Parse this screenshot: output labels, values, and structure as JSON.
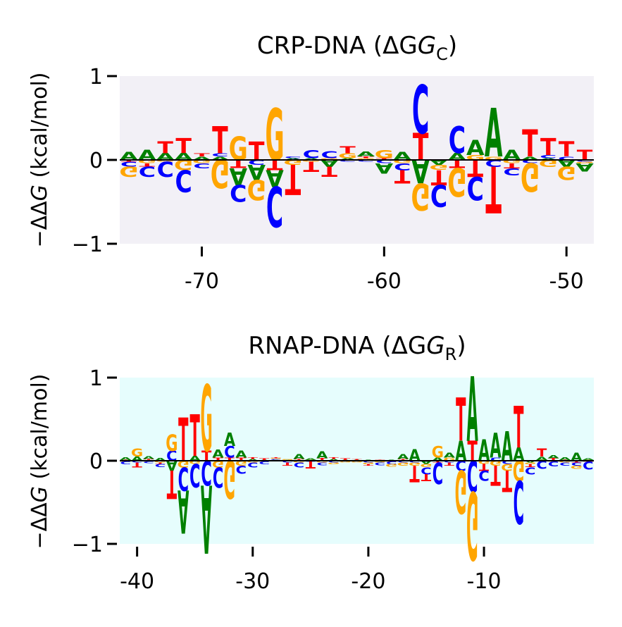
{
  "chart_data": [
    {
      "type": "sequence-logo",
      "title_main": "CRP-DNA (ΔG",
      "title_sub": "C",
      "title_close": ")",
      "ylabel_prefix": "−ΔΔ",
      "ylabel_italic": "G",
      "ylabel_suffix": " (kcal/mol)",
      "ylim": [
        -1,
        1
      ],
      "yticks": [
        {
          "value": 1,
          "label": "1"
        },
        {
          "value": 0,
          "label": "0"
        },
        {
          "value": -1,
          "label": "−1"
        }
      ],
      "xlim": [
        -74.5,
        -48.5
      ],
      "xticks": [
        {
          "value": -70,
          "label": "-70"
        },
        {
          "value": -60,
          "label": "-60"
        },
        {
          "value": -50,
          "label": "-50"
        }
      ],
      "background": "#f2f0f6",
      "positions": [
        -74,
        -73,
        -72,
        -71,
        -70,
        -69,
        -68,
        -67,
        -66,
        -65,
        -64,
        -63,
        -62,
        -61,
        -60,
        -59,
        -58,
        -57,
        -56,
        -55,
        -54,
        -53,
        -52,
        -51,
        -50,
        -49
      ],
      "series": [
        {
          "name": "A",
          "values": [
            0.1,
            0.12,
            0.08,
            0.08,
            0.04,
            0.04,
            -0.2,
            -0.18,
            -0.2,
            0.02,
            0.02,
            -0.08,
            0.02,
            0.06,
            -0.12,
            0.1,
            -0.28,
            -0.06,
            0.08,
            0.18,
            0.58,
            0.12,
            0.04,
            0.02,
            -0.08,
            -0.1
          ]
        },
        {
          "name": "C",
          "values": [
            -0.06,
            -0.12,
            -0.18,
            -0.26,
            -0.06,
            0.04,
            -0.2,
            -0.06,
            -0.48,
            0.02,
            0.1,
            0.08,
            -0.02,
            -0.02,
            -0.04,
            -0.08,
            0.58,
            -0.26,
            0.32,
            -0.28,
            -0.08,
            -0.08,
            -0.04,
            0.04,
            0.04,
            -0.02
          ]
        },
        {
          "name": "G",
          "values": [
            -0.12,
            -0.04,
            -0.02,
            -0.12,
            -0.04,
            -0.34,
            0.28,
            -0.24,
            0.62,
            -0.06,
            -0.02,
            0.02,
            0.06,
            0.02,
            0.1,
            -0.04,
            -0.32,
            -0.06,
            -0.34,
            0.06,
            0.04,
            -0.04,
            -0.34,
            -0.08,
            -0.16,
            -0.02
          ]
        },
        {
          "name": "T",
          "values": [
            -0.02,
            -0.04,
            0.14,
            0.18,
            0.04,
            0.32,
            -0.1,
            0.22,
            -0.12,
            -0.36,
            -0.12,
            -0.12,
            0.08,
            0.02,
            0.02,
            -0.16,
            0.32,
            -0.18,
            -0.1,
            -0.2,
            -0.56,
            -0.06,
            0.32,
            0.2,
            0.18,
            0.12
          ]
        }
      ]
    },
    {
      "type": "sequence-logo",
      "title_main": "RNAP-DNA (ΔG",
      "title_sub": "R",
      "title_close": ")",
      "ylabel_prefix": "−ΔΔ",
      "ylabel_italic": "G",
      "ylabel_suffix": " (kcal/mol)",
      "ylim": [
        -1,
        1
      ],
      "yticks": [
        {
          "value": 1,
          "label": "1"
        },
        {
          "value": 0,
          "label": "0"
        },
        {
          "value": -1,
          "label": "−1"
        }
      ],
      "xlim": [
        -41.5,
        -0.5
      ],
      "xticks": [
        {
          "value": -40,
          "label": "-40"
        },
        {
          "value": -30,
          "label": "-30"
        },
        {
          "value": -20,
          "label": "-20"
        },
        {
          "value": -10,
          "label": "-10"
        }
      ],
      "background": "#e6fdfd",
      "positions": [
        -41,
        -40,
        -39,
        -38,
        -37,
        -36,
        -35,
        -34,
        -33,
        -32,
        -31,
        -30,
        -29,
        -28,
        -27,
        -26,
        -25,
        -24,
        -23,
        -22,
        -21,
        -20,
        -19,
        -18,
        -17,
        -16,
        -15,
        -14,
        -13,
        -12,
        -11,
        -10,
        -9,
        -8,
        -7,
        -6,
        -5,
        -4,
        -3,
        -2,
        -1
      ],
      "series": [
        {
          "name": "A",
          "values": [
            0.03,
            0.05,
            0.03,
            0.03,
            -0.12,
            -0.52,
            0.06,
            -0.82,
            0.1,
            0.16,
            0.08,
            0.02,
            0.01,
            0.01,
            0.01,
            0.06,
            0.02,
            0.08,
            0.02,
            0.01,
            0.01,
            0.01,
            -0.01,
            0.01,
            0.06,
            0.14,
            -0.04,
            0.04,
            0.06,
            0.24,
            0.78,
            0.26,
            0.3,
            0.36,
            0.16,
            -0.02,
            0.04,
            0.04,
            0.03,
            0.1,
            0.02
          ]
        },
        {
          "name": "C",
          "values": [
            -0.03,
            -0.02,
            -0.02,
            -0.04,
            0.12,
            -0.28,
            -0.28,
            -0.3,
            -0.24,
            0.14,
            -0.1,
            -0.06,
            -0.03,
            0.01,
            -0.02,
            -0.06,
            -0.01,
            -0.03,
            -0.02,
            -0.01,
            -0.01,
            -0.02,
            -0.03,
            -0.03,
            -0.02,
            -0.02,
            -0.08,
            -0.26,
            -0.02,
            -0.12,
            -0.38,
            -0.12,
            0.04,
            -0.04,
            -0.52,
            -0.08,
            -0.1,
            -0.06,
            -0.04,
            -0.04,
            -0.1
          ]
        },
        {
          "name": "G",
          "values": [
            -0.01,
            0.1,
            -0.01,
            -0.02,
            0.2,
            -0.08,
            -0.04,
            0.8,
            -0.08,
            -0.46,
            -0.06,
            -0.02,
            -0.01,
            0.01,
            0.01,
            -0.02,
            0.01,
            -0.02,
            -0.02,
            -0.01,
            -0.01,
            -0.02,
            -0.01,
            -0.03,
            -0.04,
            -0.04,
            -0.04,
            0.14,
            0.04,
            -0.52,
            -0.82,
            -0.04,
            -0.06,
            -0.08,
            -0.24,
            -0.02,
            0.01,
            -0.01,
            -0.02,
            -0.04,
            0.01
          ]
        },
        {
          "name": "T",
          "values": [
            0.01,
            -0.06,
            0.02,
            -0.02,
            -0.34,
            0.52,
            0.5,
            0.12,
            0.04,
            0.04,
            0.04,
            0.02,
            0.02,
            0.01,
            -0.04,
            0.02,
            -0.08,
            0.03,
            0.02,
            0.02,
            0.01,
            -0.02,
            0.01,
            -0.01,
            0.02,
            -0.2,
            -0.08,
            -0.02,
            -0.04,
            0.52,
            0.24,
            -0.08,
            -0.24,
            -0.26,
            0.5,
            -0.04,
            0.1,
            0.03,
            0.01,
            -0.02,
            -0.01
          ]
        }
      ]
    }
  ],
  "colors": {
    "A": "#008000",
    "C": "#0000ff",
    "G": "#ffa500",
    "T": "#ff0000",
    "zero_line": "#000000"
  }
}
